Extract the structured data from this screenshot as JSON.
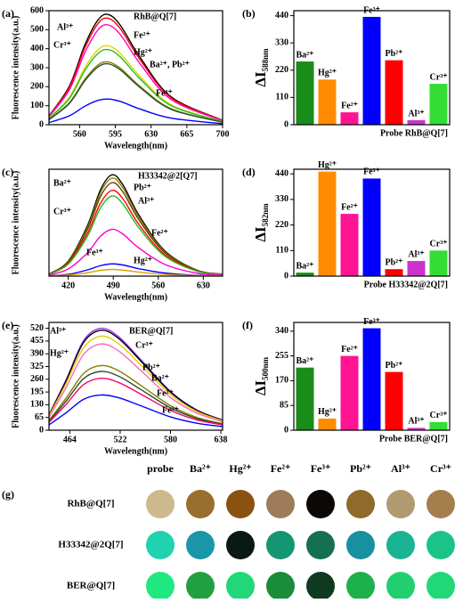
{
  "chart_data": [
    {
      "type": "line",
      "label": "(a)",
      "ylabel": "Fluorescence intensity(a.u.)",
      "xlabel": "Wavelength(nm)",
      "x": [
        530,
        550,
        565,
        578,
        588,
        600,
        620,
        650,
        700
      ],
      "xlim": [
        530,
        700
      ],
      "xticks": [
        560,
        595,
        630,
        665,
        700
      ],
      "ylim": [
        0,
        600
      ],
      "yticks": [
        0,
        100,
        200,
        300,
        400,
        500,
        600
      ],
      "series": [
        {
          "color": "#000000",
          "values": [
            46,
            203,
            418,
            551,
            580,
            522,
            348,
            145,
            23
          ]
        },
        {
          "color": "#ff0000",
          "values": [
            45,
            196,
            403,
            532,
            560,
            504,
            336,
            140,
            22
          ]
        },
        {
          "color": "#ff00cc",
          "values": [
            42,
            184,
            378,
            499,
            525,
            473,
            315,
            131,
            21
          ]
        },
        {
          "color": "#e8d400",
          "values": [
            33,
            145,
            299,
            394,
            415,
            374,
            249,
            104,
            17
          ]
        },
        {
          "color": "#22c022",
          "values": [
            32,
            138,
            284,
            375,
            395,
            356,
            237,
            99,
            16
          ]
        },
        {
          "color": "#808000",
          "values": [
            26,
            116,
            238,
            314,
            330,
            297,
            198,
            83,
            13
          ]
        },
        {
          "color": "#2f4f2f",
          "values": [
            26,
            112,
            230,
            304,
            320,
            288,
            192,
            80,
            13
          ]
        },
        {
          "color": "#0000ff",
          "values": [
            11,
            47,
            97,
            128,
            135,
            122,
            81,
            34,
            5
          ]
        }
      ],
      "annotations": [
        "RhB@Q[7]",
        "Al³⁺",
        "Fe²⁺",
        "Cr³⁺",
        "Hg²⁺",
        "Ba²⁺, Pb²⁺",
        "Fe³⁺"
      ]
    },
    {
      "type": "bar",
      "label": "(b)",
      "ylabel": "ΔI",
      "ylabel_sub": "588nm",
      "xlabel": "Probe RhB@Q[7]",
      "categories": [
        "Ba²⁺",
        "Hg²⁺",
        "Fe²⁺",
        "Fe³⁺",
        "Pb²⁺",
        "Al³⁺",
        "Cr³⁺"
      ],
      "values": [
        255,
        182,
        50,
        435,
        260,
        18,
        165
      ],
      "colors": [
        "#1a8c1a",
        "#ff8c00",
        "#ff1493",
        "#0000ff",
        "#ff0000",
        "#cc33cc",
        "#33dd33"
      ],
      "ylim": [
        0,
        460
      ],
      "yticks": [
        0,
        110,
        220,
        330,
        440
      ]
    },
    {
      "type": "line",
      "label": "(c)",
      "ylabel": "Fluorescence intensity(a.u.)",
      "xlabel": "Wavelength(nm)",
      "x": [
        390,
        420,
        450,
        470,
        488,
        505,
        530,
        570,
        620,
        660
      ],
      "xlim": [
        390,
        660
      ],
      "xticks": [
        420,
        490,
        560,
        630
      ],
      "ylim": [
        0,
        480
      ],
      "series": [
        {
          "color": "#000000",
          "values": [
            9,
            68,
            228,
            387,
            455,
            410,
            273,
            114,
            27,
            9
          ]
        },
        {
          "color": "#808000",
          "values": [
            9,
            66,
            220,
            374,
            440,
            396,
            264,
            110,
            26,
            9
          ]
        },
        {
          "color": "#6b3a00",
          "values": [
            8,
            63,
            210,
            357,
            420,
            378,
            252,
            105,
            25,
            8
          ]
        },
        {
          "color": "#ff0000",
          "values": [
            8,
            58,
            193,
            327,
            385,
            347,
            231,
            96,
            23,
            8
          ]
        },
        {
          "color": "#22c022",
          "values": [
            7,
            54,
            180,
            306,
            360,
            324,
            216,
            90,
            22,
            7
          ]
        },
        {
          "color": "#ff00cc",
          "values": [
            4,
            32,
            105,
            179,
            210,
            189,
            126,
            53,
            13,
            4
          ]
        },
        {
          "color": "#0000ff",
          "values": [
            1,
            8,
            28,
            47,
            55,
            50,
            33,
            14,
            3,
            1
          ]
        },
        {
          "color": "#e0a000",
          "values": [
            1,
            5,
            15,
            26,
            30,
            27,
            18,
            8,
            2,
            1
          ]
        }
      ],
      "annotations": [
        "H33342@2[Q7]",
        "Ba²⁺",
        "Pb²⁺",
        "Cr³⁺",
        "Al³⁺",
        "Fe²⁺",
        "Fe³⁺",
        "Hg²⁺"
      ]
    },
    {
      "type": "bar",
      "label": "(d)",
      "ylabel": "ΔI",
      "ylabel_sub": "582nm",
      "xlabel": "Probe H33342@2Q[7]",
      "categories": [
        "Ba²⁺",
        "Hg²⁺",
        "Fe²⁺",
        "Fe³⁺",
        "Pb²⁺",
        "Al³⁺",
        "Cr³⁺"
      ],
      "values": [
        15,
        450,
        268,
        420,
        30,
        65,
        110
      ],
      "colors": [
        "#1a8c1a",
        "#ff8c00",
        "#ff1493",
        "#0000ff",
        "#ff0000",
        "#cc33cc",
        "#33dd33"
      ],
      "ylim": [
        0,
        460
      ],
      "yticks": [
        0,
        110,
        220,
        330,
        440
      ]
    },
    {
      "type": "line",
      "label": "(e)",
      "ylabel": "Fluorescence intensity(a.u.)",
      "xlabel": "Wavelength(nm)",
      "x": [
        440,
        460,
        480,
        500,
        520,
        545,
        580,
        610,
        640
      ],
      "xlim": [
        440,
        640
      ],
      "xticks": [
        464,
        522,
        580,
        638
      ],
      "ylim": [
        0,
        550
      ],
      "yticks": [
        0,
        65,
        130,
        195,
        260,
        325,
        390,
        455,
        520
      ],
      "series": [
        {
          "color": "#9b30ff",
          "values": [
            78,
            260,
            458,
            520,
            478,
            364,
            198,
            104,
            52
          ]
        },
        {
          "color": "#000000",
          "values": [
            77,
            255,
            449,
            510,
            469,
            357,
            194,
            102,
            51
          ]
        },
        {
          "color": "#e0d000",
          "values": [
            72,
            240,
            422,
            480,
            442,
            336,
            182,
            96,
            48
          ]
        },
        {
          "color": "#ff69b4",
          "values": [
            66,
            220,
            387,
            440,
            405,
            308,
            167,
            88,
            44
          ]
        },
        {
          "color": "#808000",
          "values": [
            50,
            165,
            290,
            330,
            304,
            231,
            125,
            66,
            33
          ]
        },
        {
          "color": "#2f4f2f",
          "values": [
            45,
            150,
            264,
            300,
            276,
            210,
            114,
            60,
            30
          ]
        },
        {
          "color": "#ff0066",
          "values": [
            40,
            133,
            233,
            265,
            244,
            186,
            101,
            53,
            27
          ]
        },
        {
          "color": "#0000ff",
          "values": [
            27,
            90,
            158,
            180,
            166,
            126,
            68,
            36,
            18
          ]
        }
      ],
      "annotations": [
        "Al³⁺",
        "BER@Q[7]",
        "Cr³⁺",
        "Hg²⁺",
        "Pb²⁺",
        "Ba²⁺",
        "Fe²⁺",
        "Fe³⁺"
      ]
    },
    {
      "type": "bar",
      "label": "(f)",
      "ylabel": "ΔI",
      "ylabel_sub": "500nm",
      "xlabel": "Probe BER@Q[7]",
      "categories": [
        "Ba²⁺",
        "Hg²⁺",
        "Fe²⁺",
        "Fe³⁺",
        "Pb²⁺",
        "Al³⁺",
        "Cr³⁺"
      ],
      "values": [
        215,
        40,
        255,
        350,
        200,
        8,
        28
      ],
      "colors": [
        "#1a8c1a",
        "#ff8c00",
        "#ff1493",
        "#0000ff",
        "#ff0000",
        "#cc33cc",
        "#33dd33"
      ],
      "ylim": [
        0,
        370
      ],
      "yticks": [
        0,
        85,
        170,
        255,
        340
      ]
    }
  ],
  "color_grid": {
    "label": "(g)",
    "columns": [
      "probe",
      "Ba²⁺",
      "Hg²⁺",
      "Fe²⁺",
      "Fe³⁺",
      "Pb²⁺",
      "Al³⁺",
      "Cr³⁺"
    ],
    "rows": [
      {
        "name": "RhB@Q[7]",
        "colors": [
          "#cdb98e",
          "#9a6e2c",
          "#8a5210",
          "#9d7b5b",
          "#0c0905",
          "#8f6a2a",
          "#b09a72",
          "#a47e4c"
        ]
      },
      {
        "name": "H33342@2Q[7]",
        "colors": [
          "#1fd2b0",
          "#1a96a8",
          "#0a1a12",
          "#159672",
          "#157050",
          "#1890a0",
          "#1ab394",
          "#1ac488"
        ]
      },
      {
        "name": "BER@Q[7]",
        "colors": [
          "#20e880",
          "#20a040",
          "#20d878",
          "#1a8c3a",
          "#0f3a20",
          "#1eb04a",
          "#20d070",
          "#20d878"
        ]
      }
    ]
  }
}
